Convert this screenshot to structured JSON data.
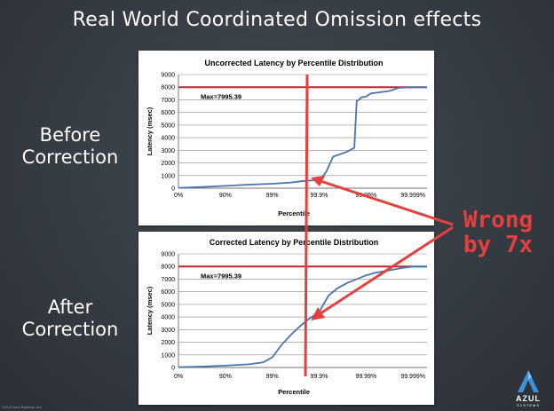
{
  "slide": {
    "title": "Real World Coordinated Omission effects",
    "before_label": "Before\nCorrection",
    "after_label": "After\nCorrection",
    "annotation": "Wrong\nby 7x",
    "copyright": "©2012 Azul Systems, Inc.",
    "logo": {
      "name": "AZUL",
      "sub": "SYSTEMS",
      "icon": "azul-logo-icon"
    }
  },
  "colors": {
    "background": "#3a4047",
    "annotation": "#e53f3f",
    "series": "#4a74ad",
    "maxline": "#c0272d"
  },
  "chart_data": [
    {
      "type": "line",
      "title": "Uncorrected Latency by Percentile Distribution",
      "xlabel": "Percentile",
      "ylabel": "Latency (msec)",
      "x_ticks": [
        "0%",
        "90%",
        "99%",
        "99.9%",
        "99.99%",
        "99.999%"
      ],
      "ylim": [
        0,
        9000
      ],
      "y_ticks": [
        0,
        1000,
        2000,
        3000,
        4000,
        5000,
        6000,
        7000,
        8000,
        9000
      ],
      "max_label": "Max=7995.39",
      "max_value": 7995.39,
      "grid": true,
      "series": [
        {
          "x": [
            0,
            0.5,
            1.0,
            1.5,
            2.0,
            2.4,
            2.6,
            2.85,
            3.0,
            3.05,
            3.15,
            3.3,
            3.6,
            3.7,
            3.75,
            3.8,
            3.85,
            3.9,
            4.0,
            4.1,
            4.3,
            4.5,
            4.7,
            5.0,
            5.3
          ],
          "y": [
            30,
            100,
            180,
            280,
            350,
            450,
            540,
            620,
            700,
            800,
            1300,
            2500,
            2900,
            3100,
            3200,
            6900,
            7000,
            7200,
            7250,
            7500,
            7600,
            7700,
            7950,
            7995,
            7995
          ]
        }
      ]
    },
    {
      "type": "line",
      "title": "Corrected Latency by Percentile Distribution",
      "xlabel": "Percentile",
      "ylabel": "Latency (msec)",
      "x_ticks": [
        "0%",
        "90%",
        "99%",
        "99.9%",
        "99.99%",
        "99.999%"
      ],
      "ylim": [
        0,
        9000
      ],
      "y_ticks": [
        0,
        1000,
        2000,
        3000,
        4000,
        5000,
        6000,
        7000,
        8000,
        9000
      ],
      "max_label": "Max=7995.39",
      "max_value": 7995.39,
      "grid": true,
      "series": [
        {
          "x": [
            0,
            0.5,
            1.0,
            1.5,
            1.8,
            2.0,
            2.2,
            2.4,
            2.6,
            2.8,
            3.0,
            3.2,
            3.4,
            3.6,
            3.8,
            4.0,
            4.2,
            4.5,
            4.8,
            5.0,
            5.3
          ],
          "y": [
            20,
            80,
            150,
            250,
            400,
            800,
            1800,
            2600,
            3300,
            3900,
            4400,
            5700,
            6300,
            6700,
            7000,
            7300,
            7500,
            7700,
            7900,
            7995,
            7995
          ]
        }
      ]
    }
  ]
}
